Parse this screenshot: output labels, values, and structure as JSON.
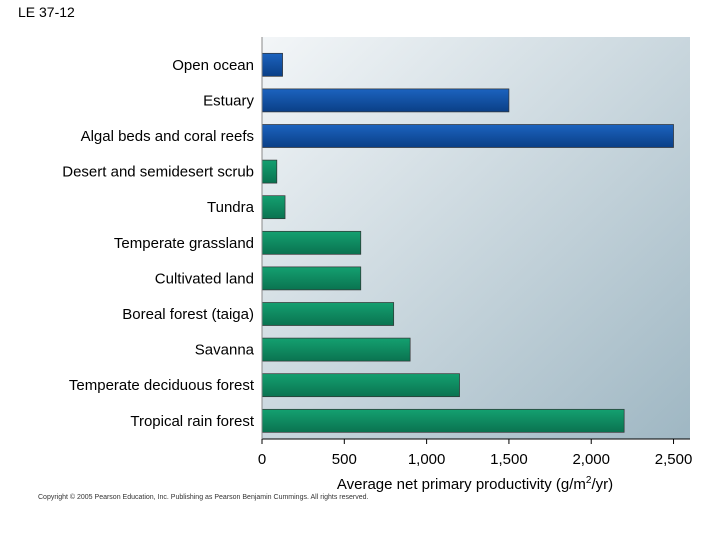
{
  "slide_label": "LE 37-12",
  "copyright": "Copyright © 2005 Pearson Education, Inc. Publishing as Pearson Benjamin Cummings. All rights reserved.",
  "chart_data": {
    "type": "bar",
    "orientation": "horizontal",
    "categories": [
      "Open ocean",
      "Estuary",
      "Algal beds and coral reefs",
      "Desert and semidesert scrub",
      "Tundra",
      "Temperate grassland",
      "Cultivated land",
      "Boreal forest (taiga)",
      "Savanna",
      "Temperate deciduous forest",
      "Tropical rain forest"
    ],
    "values": [
      125,
      1500,
      2500,
      90,
      140,
      600,
      600,
      800,
      900,
      1200,
      2200
    ],
    "groups": [
      "aquatic",
      "aquatic",
      "aquatic",
      "terrestrial",
      "terrestrial",
      "terrestrial",
      "terrestrial",
      "terrestrial",
      "terrestrial",
      "terrestrial",
      "terrestrial"
    ],
    "colors": {
      "aquatic": "#0d4fa3",
      "terrestrial": "#0e8a5f"
    },
    "xlim": [
      0,
      2600
    ],
    "xticks": [
      0,
      500,
      1000,
      1500,
      2000,
      2500
    ],
    "xtick_labels": [
      "0",
      "500",
      "1,000",
      "1,500",
      "2,000",
      "2,500"
    ],
    "xlabel_main": "Average net primary productivity (g/m",
    "xlabel_sup": "2",
    "xlabel_end": "/yr)",
    "title": "",
    "grid": false
  }
}
